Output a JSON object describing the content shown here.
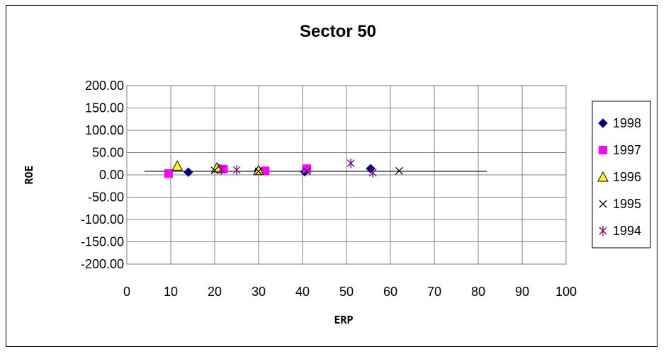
{
  "chart_data": {
    "type": "scatter",
    "title": "Sector 50",
    "xlabel": "ERP",
    "ylabel": "ROE",
    "xlim": [
      0,
      100
    ],
    "ylim": [
      -200,
      200
    ],
    "x_ticks": [
      "0",
      "10",
      "20",
      "30",
      "40",
      "50",
      "60",
      "70",
      "80",
      "90",
      "100"
    ],
    "y_ticks": [
      "200.00",
      "150.00",
      "100.00",
      "50.00",
      "0.00",
      "-50.00",
      "-100.00",
      "-150.00",
      "-200.00"
    ],
    "grid": true,
    "legend_position": "right",
    "reference_line": {
      "x": [
        4,
        82
      ],
      "y": [
        8,
        8
      ]
    },
    "series": [
      {
        "name": "1998",
        "marker": "diamond",
        "color": "#000080",
        "points": [
          [
            14,
            6
          ],
          [
            21,
            14
          ],
          [
            30,
            10
          ],
          [
            40.5,
            7
          ],
          [
            55.5,
            14
          ]
        ]
      },
      {
        "name": "1997",
        "marker": "square",
        "color": "#ff00ff",
        "points": [
          [
            9.5,
            3
          ],
          [
            22,
            13
          ],
          [
            31.5,
            9
          ],
          [
            41,
            14
          ]
        ]
      },
      {
        "name": "1996",
        "marker": "triangle",
        "color": "#ffff00",
        "points": [
          [
            11.5,
            20
          ],
          [
            20.5,
            16
          ],
          [
            30,
            10
          ]
        ]
      },
      {
        "name": "1995",
        "marker": "x",
        "color": "#000000",
        "points": [
          [
            20,
            10
          ],
          [
            30,
            8
          ],
          [
            41,
            8
          ],
          [
            62,
            9
          ]
        ]
      },
      {
        "name": "1994",
        "marker": "star",
        "color": "#800080",
        "points": [
          [
            21.5,
            12
          ],
          [
            25,
            11
          ],
          [
            51,
            26
          ],
          [
            56,
            5
          ]
        ]
      }
    ]
  }
}
